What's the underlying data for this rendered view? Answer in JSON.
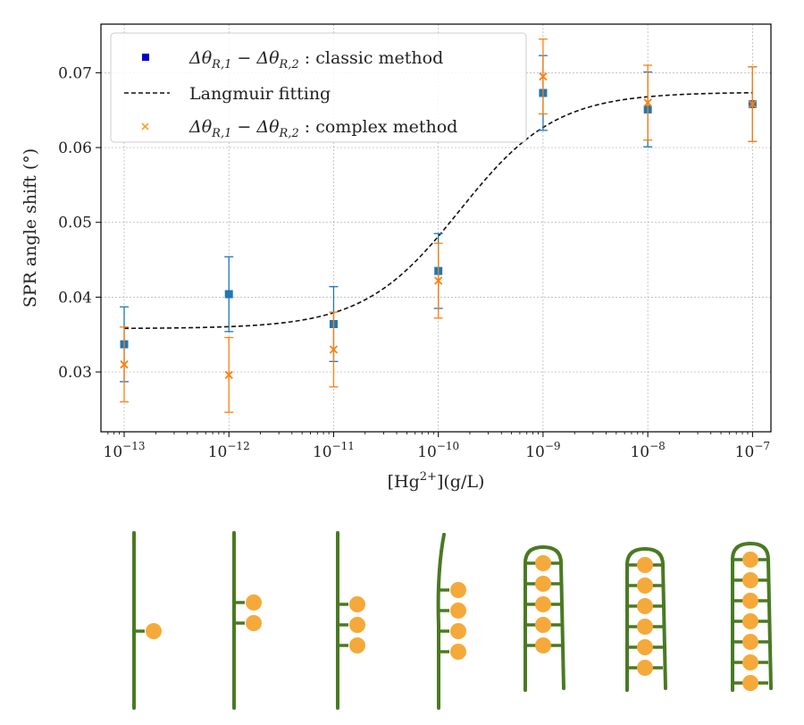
{
  "chart_data": {
    "type": "scatter",
    "title": "",
    "xlabel": "[Hg2+](g/L)",
    "ylabel": "SPR angle shift (°)",
    "xscale": "log",
    "xlim": [
      6e-14,
      1.5e-07
    ],
    "ylim": [
      0.022,
      0.0765
    ],
    "x": [
      1e-13,
      1e-12,
      1e-11,
      1e-10,
      1e-09,
      1e-08,
      1e-07
    ],
    "x_ticks": [
      {
        "value": 1e-13,
        "base": "10",
        "exp": "−13"
      },
      {
        "value": 1e-12,
        "base": "10",
        "exp": "−12"
      },
      {
        "value": 1e-11,
        "base": "10",
        "exp": "−11"
      },
      {
        "value": 1e-10,
        "base": "10",
        "exp": "−10"
      },
      {
        "value": 1e-09,
        "base": "10",
        "exp": "−9"
      },
      {
        "value": 1e-08,
        "base": "10",
        "exp": "−8"
      },
      {
        "value": 1e-07,
        "base": "10",
        "exp": "−7"
      }
    ],
    "y_ticks": [
      {
        "value": 0.03,
        "label": "0.03"
      },
      {
        "value": 0.04,
        "label": "0.04"
      },
      {
        "value": 0.05,
        "label": "0.05"
      },
      {
        "value": 0.06,
        "label": "0.06"
      },
      {
        "value": 0.07,
        "label": "0.07"
      }
    ],
    "grid": true,
    "legend_position": "top-left",
    "series": [
      {
        "name": "Δθ_R,1 − Δθ_R,2 : classic method",
        "marker": "square",
        "color": "#1f77b4",
        "legend_color": "#0000cc",
        "values": [
          0.0337,
          0.0404,
          0.0364,
          0.0435,
          0.0673,
          0.0651,
          0.0658
        ],
        "errors": [
          0.005,
          0.005,
          0.005,
          0.005,
          0.005,
          0.005,
          0.005
        ]
      },
      {
        "name": "Langmuir fitting",
        "type": "line",
        "style": "dashed",
        "color": "#111111",
        "bottom": 0.0358,
        "top": 0.0674,
        "x_half": 1.6e-10,
        "hill": 0.95
      },
      {
        "name": "Δθ_R,1 − Δθ_R,2 : complex method",
        "marker": "x",
        "color": "#ff7f0e",
        "legend_color": "#ffa133",
        "values": [
          0.031,
          0.0296,
          0.033,
          0.0422,
          0.0695,
          0.066,
          0.0658
        ],
        "errors": [
          0.005,
          0.005,
          0.005,
          0.005,
          0.005,
          0.005,
          0.005
        ]
      }
    ]
  },
  "legend": {
    "classic": {
      "delta": "Δθ",
      "sub1": "R,1",
      "mid": " − Δθ",
      "sub2": "R,2",
      "rest": " : classic method"
    },
    "langmuir": "Langmuir fitting",
    "complex": {
      "delta": "Δθ",
      "sub1": "R,1",
      "mid": " − Δθ",
      "sub2": "R,2",
      "rest": " : complex method"
    }
  },
  "axis_labels": {
    "y": "SPR angle shift (°)",
    "x_pre": "[Hg",
    "x_sup": "2+",
    "x_post": "](g/L)"
  },
  "diagram": {
    "strand_color": "#4a7a23",
    "bead_color": "#f5a93a",
    "stages": [
      {
        "beads": 1,
        "folded": false
      },
      {
        "beads": 2,
        "folded": false
      },
      {
        "beads": 3,
        "folded": false
      },
      {
        "beads": 4,
        "folded": false
      },
      {
        "beads": 5,
        "folded": true
      },
      {
        "beads": 6,
        "folded": true
      },
      {
        "beads": 7,
        "folded": true
      }
    ]
  }
}
